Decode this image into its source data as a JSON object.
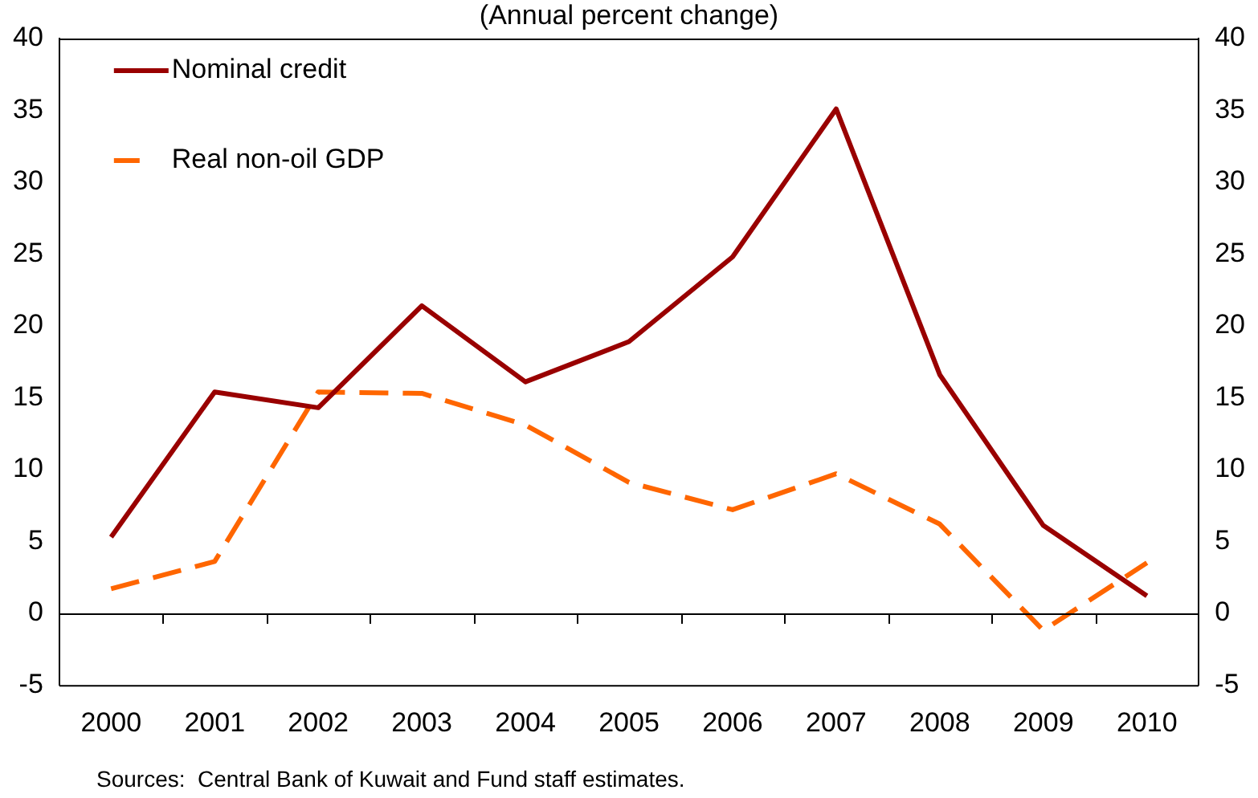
{
  "chart_data": {
    "type": "line",
    "title": "(Annual percent change)",
    "categories": [
      "2000",
      "2001",
      "2002",
      "2003",
      "2004",
      "2005",
      "2006",
      "2007",
      "2008",
      "2009",
      "2010"
    ],
    "series": [
      {
        "name": "Nominal credit",
        "color": "#990000",
        "line_style": "solid",
        "values": [
          5.3,
          15.4,
          14.3,
          21.4,
          16.1,
          18.9,
          24.8,
          35.1,
          16.6,
          6.1,
          1.2
        ]
      },
      {
        "name": "Real non-oil GDP",
        "color": "#ff6600",
        "line_style": "dashed",
        "values": [
          1.7,
          3.6,
          15.4,
          15.3,
          13.1,
          9.1,
          7.2,
          9.7,
          6.2,
          -1.2,
          3.5
        ]
      }
    ],
    "ylim": [
      -5,
      40
    ],
    "yticks": [
      -5,
      0,
      5,
      10,
      15,
      20,
      25,
      30,
      35,
      40
    ],
    "y2lim": [
      -5,
      40
    ],
    "y2ticks": [
      -5,
      0,
      5,
      10,
      15,
      20,
      25,
      30,
      35,
      40
    ],
    "ref_lines": [
      {
        "axis": "y",
        "value": 0,
        "color": "#000000"
      }
    ],
    "grid": false,
    "legend": "top left",
    "marker": "none",
    "annotations": [
      "Sources:  Central Bank of Kuwait and Fund staff estimates."
    ]
  }
}
